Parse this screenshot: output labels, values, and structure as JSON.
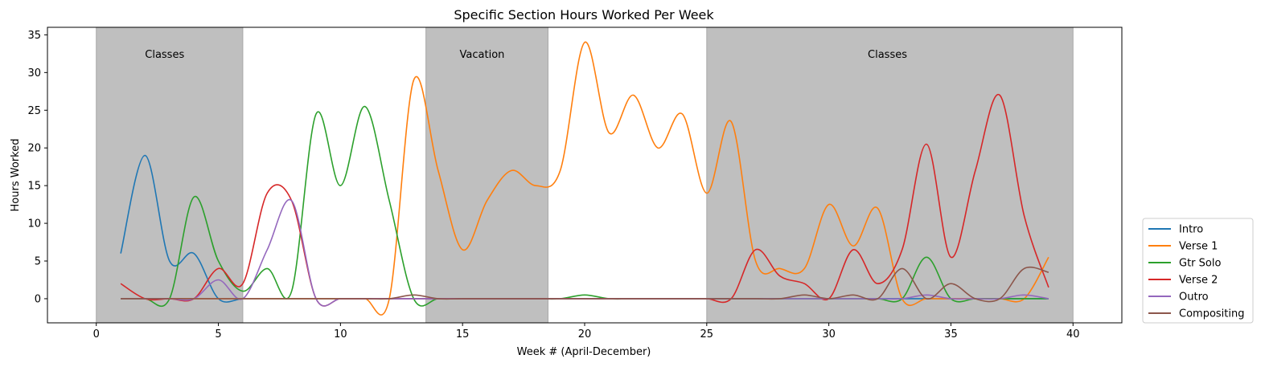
{
  "chart_data": {
    "type": "line",
    "title": "Specific Section Hours Worked Per Week",
    "xlabel": "Week # (April-December)",
    "ylabel": "Hours Worked",
    "xlim": [
      -2,
      42
    ],
    "ylim": [
      -3.2,
      36
    ],
    "xticks": [
      0,
      5,
      10,
      15,
      20,
      25,
      30,
      35,
      40
    ],
    "yticks": [
      0,
      5,
      10,
      15,
      20,
      25,
      30,
      35
    ],
    "grid": false,
    "legend_position": "lower-right-outside",
    "bands": [
      {
        "x0": 0,
        "x1": 6,
        "label": "Classes",
        "label_x": 2.8
      },
      {
        "x0": 13.5,
        "x1": 18.5,
        "label": "Vacation",
        "label_x": 15.8
      },
      {
        "x0": 25,
        "x1": 40,
        "label": "Classes",
        "label_x": 32.4
      }
    ],
    "band_color": "#bfbfbf",
    "x": [
      1,
      2,
      3,
      4,
      5,
      6,
      7,
      8,
      9,
      10,
      11,
      12,
      13,
      14,
      15,
      16,
      17,
      18,
      19,
      20,
      21,
      22,
      23,
      24,
      25,
      26,
      27,
      28,
      29,
      30,
      31,
      32,
      33,
      34,
      35,
      36,
      37,
      38,
      39
    ],
    "series": [
      {
        "name": "Intro",
        "color": "#1f77b4",
        "values": [
          6,
          19,
          5,
          6,
          0,
          0,
          0,
          0,
          0,
          0,
          0,
          0,
          0,
          0,
          0,
          0,
          0,
          0,
          0,
          0,
          0,
          0,
          0,
          0,
          0,
          0,
          0,
          0,
          0,
          0,
          0,
          0,
          0,
          0,
          0,
          0,
          0,
          0,
          0
        ]
      },
      {
        "name": "Verse 1",
        "color": "#ff7f0e",
        "values": [
          0,
          0,
          0,
          0,
          0,
          0,
          0,
          0,
          0,
          0,
          0,
          0,
          29,
          17,
          6.5,
          13,
          17,
          15,
          17,
          34,
          22,
          27,
          20,
          24.5,
          14,
          23.5,
          5,
          4,
          4,
          12.5,
          7,
          12,
          0,
          0,
          0,
          0,
          0,
          0,
          5.5
        ]
      },
      {
        "name": "Gtr Solo",
        "color": "#2ca02c",
        "values": [
          0,
          0,
          0,
          13.5,
          5,
          1,
          4,
          1,
          24.5,
          15,
          25.5,
          13,
          0,
          0,
          0,
          0,
          0,
          0,
          0,
          0.5,
          0,
          0,
          0,
          0,
          0,
          0,
          0,
          0,
          0,
          0,
          0,
          0,
          0,
          5.5,
          0,
          0,
          0,
          0,
          0
        ]
      },
      {
        "name": "Verse 2",
        "color": "#d62728",
        "values": [
          2,
          0,
          0,
          0,
          4,
          2,
          14,
          13,
          0,
          0,
          0,
          0,
          0,
          0,
          0,
          0,
          0,
          0,
          0,
          0,
          0,
          0,
          0,
          0,
          0,
          0,
          6.5,
          3,
          2,
          0,
          6.5,
          2,
          6.5,
          20.5,
          5.5,
          17,
          27,
          11,
          1.5
        ]
      },
      {
        "name": "Outro",
        "color": "#9467bd",
        "values": [
          0,
          0,
          0,
          0,
          2.5,
          0,
          6.5,
          13,
          0,
          0,
          0,
          0,
          0,
          0,
          0,
          0,
          0,
          0,
          0,
          0,
          0,
          0,
          0,
          0,
          0,
          0,
          0,
          0,
          0,
          0,
          0,
          0,
          0,
          0.5,
          0,
          0,
          0,
          0.5,
          0
        ]
      },
      {
        "name": "Compositing",
        "color": "#8c564b",
        "values": [
          0,
          0,
          0,
          0,
          0,
          0,
          0,
          0,
          0,
          0,
          0,
          0,
          0.5,
          0,
          0,
          0,
          0,
          0,
          0,
          0,
          0,
          0,
          0,
          0,
          0,
          0,
          0,
          0,
          0.5,
          0,
          0.5,
          0,
          4,
          0,
          2,
          0,
          0,
          4,
          3.5
        ]
      }
    ]
  }
}
